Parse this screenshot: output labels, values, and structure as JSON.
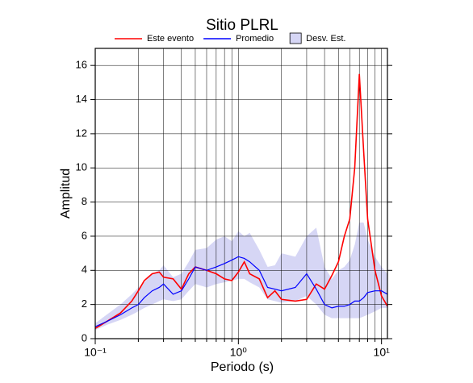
{
  "chart_data": {
    "type": "line",
    "title": "Sitio PLRL",
    "x_label": "Periodo (s)",
    "y_label": "Amplitud",
    "log_x": true,
    "grid": true,
    "xlim": [
      0.1,
      11
    ],
    "ylim": [
      0,
      17
    ],
    "xticks": [
      {
        "value": 0.1,
        "label": "10⁻¹"
      },
      {
        "value": 1,
        "label": "10⁰"
      },
      {
        "value": 10,
        "label": "10¹"
      }
    ],
    "minor_xticks": [
      0.2,
      0.3,
      0.4,
      0.5,
      0.6,
      0.7,
      0.8,
      0.9,
      2,
      3,
      4,
      5,
      6,
      7,
      8,
      9
    ],
    "yticks": [
      0,
      2,
      4,
      6,
      8,
      10,
      12,
      14,
      16
    ],
    "x": [
      0.1,
      0.12,
      0.15,
      0.18,
      0.2,
      0.22,
      0.25,
      0.28,
      0.3,
      0.35,
      0.4,
      0.45,
      0.5,
      0.6,
      0.7,
      0.8,
      0.9,
      1.0,
      1.1,
      1.2,
      1.4,
      1.6,
      1.8,
      2.0,
      2.5,
      3.0,
      3.5,
      4.0,
      4.5,
      5.0,
      5.5,
      6.0,
      6.5,
      7.0,
      7.5,
      8.0,
      9.0,
      10,
      11
    ],
    "band": {
      "name": "Desv. Est.",
      "color": "#d6d6f5",
      "lower": [
        0.5,
        0.8,
        1.1,
        1.4,
        1.6,
        1.8,
        2.0,
        2.2,
        2.3,
        2.2,
        2.3,
        2.8,
        3.2,
        3.0,
        3.2,
        3.3,
        3.4,
        3.5,
        3.5,
        3.3,
        3.0,
        2.3,
        2.2,
        2.1,
        2.2,
        2.5,
        2.0,
        1.4,
        1.2,
        1.2,
        1.2,
        1.2,
        1.2,
        1.2,
        1.3,
        1.4,
        1.6,
        1.8,
        1.8
      ],
      "upper": [
        0.9,
        1.4,
        2.0,
        2.6,
        3.0,
        3.3,
        3.8,
        4.0,
        4.3,
        3.6,
        3.8,
        4.5,
        5.2,
        5.3,
        5.8,
        6.0,
        5.7,
        6.3,
        6.0,
        6.2,
        5.2,
        4.2,
        4.3,
        5.0,
        4.8,
        6.0,
        6.5,
        4.2,
        3.5,
        4.0,
        4.2,
        4.6,
        5.5,
        6.8,
        6.8,
        5.8,
        4.8,
        4.2,
        3.8
      ]
    },
    "series": [
      {
        "name": "Este evento",
        "color": "#ff0000",
        "values": [
          0.6,
          1.0,
          1.5,
          2.2,
          2.8,
          3.4,
          3.8,
          3.9,
          3.6,
          3.5,
          2.9,
          3.8,
          4.2,
          4.0,
          3.8,
          3.5,
          3.4,
          3.9,
          4.5,
          3.8,
          3.5,
          2.4,
          2.8,
          2.3,
          2.2,
          2.3,
          3.2,
          2.9,
          3.7,
          4.5,
          6.0,
          7.0,
          10,
          15.5,
          11,
          7,
          4,
          2.5,
          1.9
        ]
      },
      {
        "name": "Promedio",
        "color": "#0000ff",
        "values": [
          0.7,
          1.0,
          1.4,
          1.8,
          2.0,
          2.4,
          2.8,
          3.0,
          3.2,
          2.6,
          2.8,
          3.5,
          4.2,
          4.0,
          4.2,
          4.4,
          4.6,
          4.8,
          4.7,
          4.5,
          4.0,
          3.0,
          2.9,
          2.8,
          3.0,
          3.8,
          2.9,
          2.0,
          1.8,
          1.9,
          1.9,
          2.0,
          2.2,
          2.2,
          2.4,
          2.7,
          2.8,
          2.8,
          2.6
        ]
      }
    ]
  }
}
